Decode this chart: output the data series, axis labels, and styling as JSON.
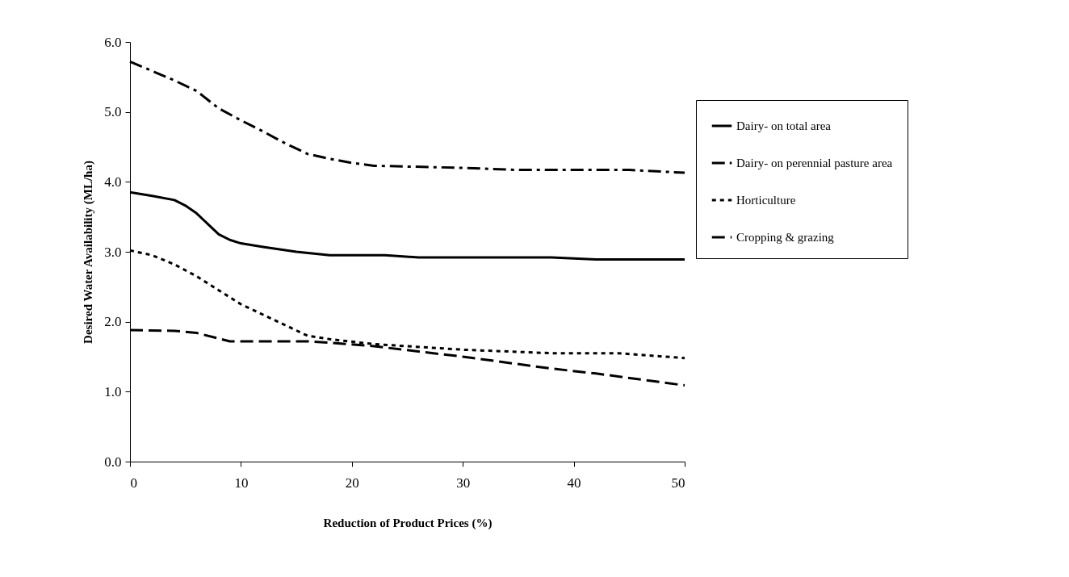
{
  "chart_data": {
    "type": "line",
    "xlabel": "Reduction of Product Prices (%)",
    "ylabel": "Desired Water Availability (ML/ha)",
    "xlim": [
      0,
      50
    ],
    "xticks": [
      0,
      10,
      20,
      30,
      40,
      50
    ],
    "ylim": [
      0,
      6
    ],
    "yticks": [
      {
        "value": 0,
        "label": "0.0"
      },
      {
        "value": 1,
        "label": "1.0"
      },
      {
        "value": 2,
        "label": "2.0"
      },
      {
        "value": 3,
        "label": "3.0"
      },
      {
        "value": 4,
        "label": "4.0"
      },
      {
        "value": 5,
        "label": "5.0"
      },
      {
        "value": 6,
        "label": "6.0"
      }
    ],
    "grid": false,
    "legend": "right",
    "marker": "none",
    "series": [
      {
        "name": "Dairy- on total area",
        "color": "#000000",
        "line_style": "solid",
        "x": [
          0,
          2,
          4,
          5,
          6,
          7,
          8,
          9,
          10,
          12,
          15,
          18,
          23,
          26,
          38,
          42,
          50
        ],
        "values": [
          3.85,
          3.8,
          3.74,
          3.66,
          3.55,
          3.4,
          3.25,
          3.17,
          3.12,
          3.07,
          3.0,
          2.95,
          2.95,
          2.92,
          2.92,
          2.89,
          2.89
        ]
      },
      {
        "name": "Dairy- on perennial pasture area",
        "color": "#000000",
        "line_style": "dashdot",
        "x": [
          0,
          4,
          6,
          8,
          10,
          12,
          14,
          16,
          18,
          20,
          22,
          30,
          35,
          45,
          50
        ],
        "values": [
          5.72,
          5.45,
          5.3,
          5.05,
          4.88,
          4.72,
          4.55,
          4.4,
          4.33,
          4.27,
          4.23,
          4.2,
          4.17,
          4.17,
          4.13
        ]
      },
      {
        "name": "Horticulture",
        "color": "#000000",
        "line_style": "dotted",
        "x": [
          0,
          2,
          4,
          6,
          8,
          10,
          12,
          14,
          16,
          18,
          22,
          30,
          38,
          44,
          50
        ],
        "values": [
          3.02,
          2.95,
          2.82,
          2.65,
          2.45,
          2.25,
          2.1,
          1.95,
          1.8,
          1.75,
          1.68,
          1.6,
          1.55,
          1.55,
          1.48
        ]
      },
      {
        "name": "Cropping & grazing",
        "color": "#000000",
        "line_style": "dashed",
        "x": [
          0,
          4,
          6,
          8,
          9,
          16,
          18,
          22,
          30,
          38,
          42,
          50
        ],
        "values": [
          1.88,
          1.87,
          1.84,
          1.76,
          1.72,
          1.72,
          1.7,
          1.65,
          1.5,
          1.33,
          1.26,
          1.09
        ]
      }
    ]
  }
}
